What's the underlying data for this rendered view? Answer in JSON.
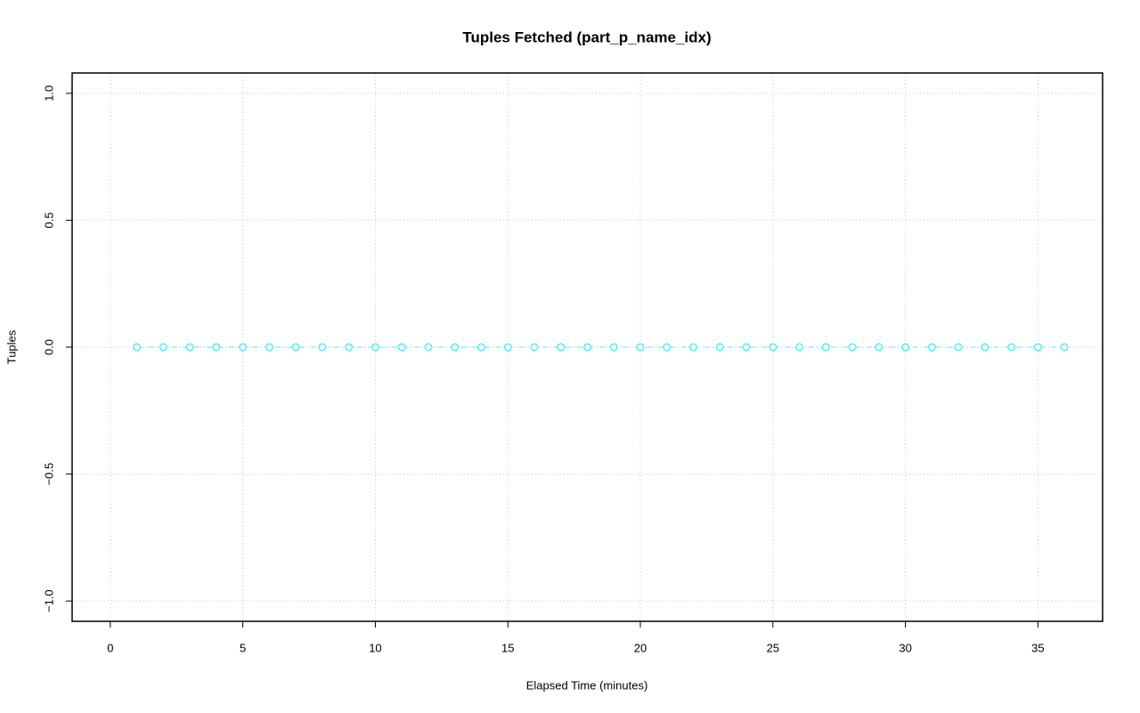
{
  "chart_data": {
    "type": "line",
    "title": "Tuples Fetched (part_p_name_idx)",
    "x_label": "Elapsed Time (minutes)",
    "y_label": "Tuples",
    "x": [
      1,
      2,
      3,
      4,
      5,
      6,
      7,
      8,
      9,
      10,
      11,
      12,
      13,
      14,
      15,
      16,
      17,
      18,
      19,
      20,
      21,
      22,
      23,
      24,
      25,
      26,
      27,
      28,
      29,
      30,
      31,
      32,
      33,
      34,
      35,
      36
    ],
    "values": [
      0,
      0,
      0,
      0,
      0,
      0,
      0,
      0,
      0,
      0,
      0,
      0,
      0,
      0,
      0,
      0,
      0,
      0,
      0,
      0,
      0,
      0,
      0,
      0,
      0,
      0,
      0,
      0,
      0,
      0,
      0,
      0,
      0,
      0,
      0,
      0
    ],
    "color": "#55eeee",
    "xlim": [
      -1.44,
      37.44
    ],
    "xticks": [
      0,
      5,
      10,
      15,
      20,
      25,
      30,
      35
    ],
    "ylim": [
      -1.08,
      1.08
    ],
    "yticks": [
      {
        "value": -1,
        "label": "−1.0"
      },
      {
        "value": -0.5,
        "label": "−0.5"
      },
      {
        "value": 0,
        "label": "0.0"
      },
      {
        "value": 0.5,
        "label": "0.5"
      },
      {
        "value": 1,
        "label": "1.0"
      }
    ],
    "grid": true
  }
}
